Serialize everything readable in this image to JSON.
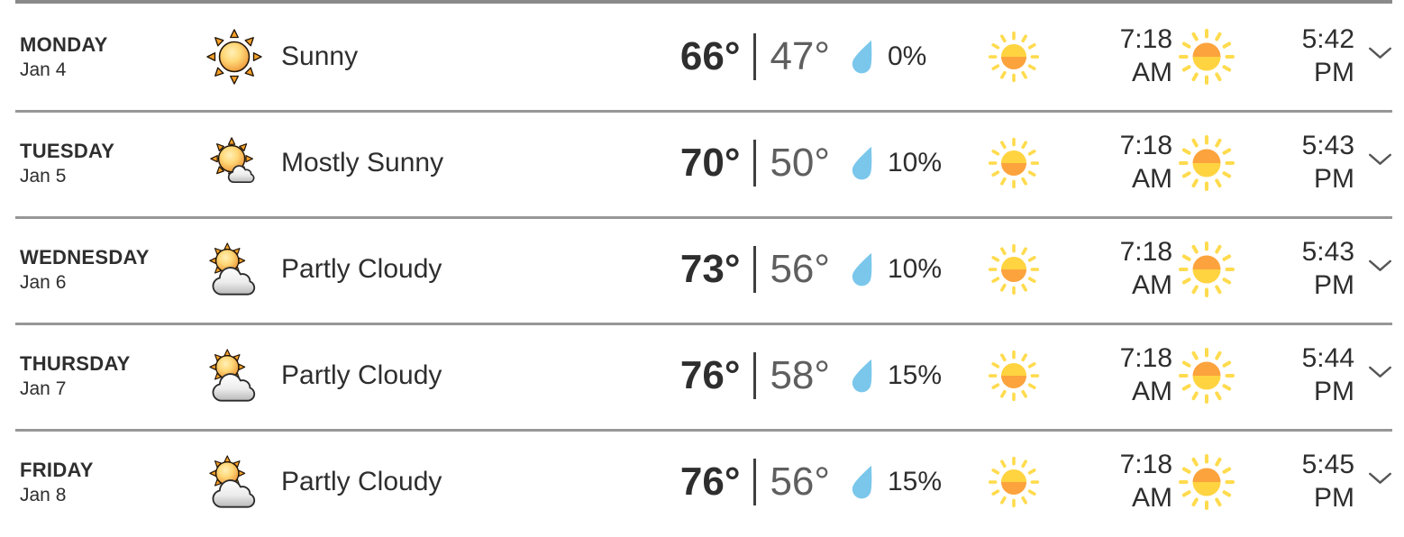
{
  "colors": {
    "text_dark": "#2e2e2e",
    "text_muted": "#5f5f5f",
    "divider": "#979797",
    "top_bar": "#8a8a8a",
    "raindrop": "#7bc7ec",
    "sun_yellow": "#ffd440",
    "sun_orange": "#fca33d",
    "chevron": "#565656"
  },
  "forecast": {
    "expand_icon": "chevron-down-icon",
    "rows": [
      {
        "day": "MONDAY",
        "date": "Jan 4",
        "condition_icon": "sunny-icon",
        "condition": "Sunny",
        "high": "66°",
        "low": "47°",
        "precip_icon": "raindrop-icon",
        "precip_chance": "0%",
        "sunrise_icon": "sunrise-icon",
        "sunrise_time": "7:18",
        "sunrise_period": "AM",
        "sunset_icon": "sunset-icon",
        "sunset_time": "5:42",
        "sunset_period": "PM"
      },
      {
        "day": "TUESDAY",
        "date": "Jan 5",
        "condition_icon": "mostly-sunny-icon",
        "condition": "Mostly Sunny",
        "high": "70°",
        "low": "50°",
        "precip_icon": "raindrop-icon",
        "precip_chance": "10%",
        "sunrise_icon": "sunrise-icon",
        "sunrise_time": "7:18",
        "sunrise_period": "AM",
        "sunset_icon": "sunset-icon",
        "sunset_time": "5:43",
        "sunset_period": "PM"
      },
      {
        "day": "WEDNESDAY",
        "date": "Jan 6",
        "condition_icon": "partly-cloudy-icon",
        "condition": "Partly Cloudy",
        "high": "73°",
        "low": "56°",
        "precip_icon": "raindrop-icon",
        "precip_chance": "10%",
        "sunrise_icon": "sunrise-icon",
        "sunrise_time": "7:18",
        "sunrise_period": "AM",
        "sunset_icon": "sunset-icon",
        "sunset_time": "5:43",
        "sunset_period": "PM"
      },
      {
        "day": "THURSDAY",
        "date": "Jan 7",
        "condition_icon": "partly-cloudy-icon",
        "condition": "Partly Cloudy",
        "high": "76°",
        "low": "58°",
        "precip_icon": "raindrop-icon",
        "precip_chance": "15%",
        "sunrise_icon": "sunrise-icon",
        "sunrise_time": "7:18",
        "sunrise_period": "AM",
        "sunset_icon": "sunset-icon",
        "sunset_time": "5:44",
        "sunset_period": "PM"
      },
      {
        "day": "FRIDAY",
        "date": "Jan 8",
        "condition_icon": "partly-cloudy-icon",
        "condition": "Partly Cloudy",
        "high": "76°",
        "low": "56°",
        "precip_icon": "raindrop-icon",
        "precip_chance": "15%",
        "sunrise_icon": "sunrise-icon",
        "sunrise_time": "7:18",
        "sunrise_period": "AM",
        "sunset_icon": "sunset-icon",
        "sunset_time": "5:45",
        "sunset_period": "PM"
      }
    ]
  }
}
